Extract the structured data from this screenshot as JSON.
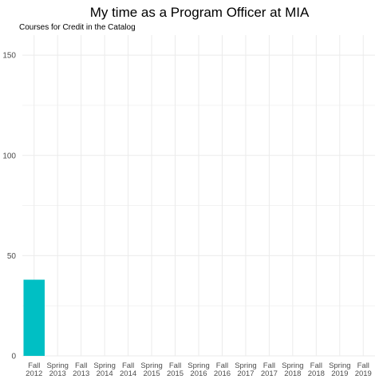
{
  "chart_data": {
    "type": "bar",
    "title": "My time as a Program Officer at MIA",
    "subtitle": "Courses for Credit in the Catalog",
    "xlabel": "",
    "ylabel": "",
    "categories": [
      [
        "Fall",
        "2012"
      ],
      [
        "Spring",
        "2013"
      ],
      [
        "Fall",
        "2013"
      ],
      [
        "Spring",
        "2014"
      ],
      [
        "Fall",
        "2014"
      ],
      [
        "Spring",
        "2015"
      ],
      [
        "Fall",
        "2015"
      ],
      [
        "Spring",
        "2016"
      ],
      [
        "Fall",
        "2016"
      ],
      [
        "Spring",
        "2017"
      ],
      [
        "Fall",
        "2017"
      ],
      [
        "Spring",
        "2018"
      ],
      [
        "Fall",
        "2018"
      ],
      [
        "Spring",
        "2019"
      ],
      [
        "Fall",
        "2019"
      ]
    ],
    "values": [
      38,
      0,
      0,
      0,
      0,
      0,
      0,
      0,
      0,
      0,
      0,
      0,
      0,
      0,
      0
    ],
    "ylim": [
      0,
      160
    ],
    "yticks": [
      0,
      50,
      100,
      150
    ],
    "grid": true,
    "legend": "none",
    "bar_color": "#00BFC4",
    "grid_color": "#ebebeb",
    "text_color": "#4d4d4d"
  }
}
